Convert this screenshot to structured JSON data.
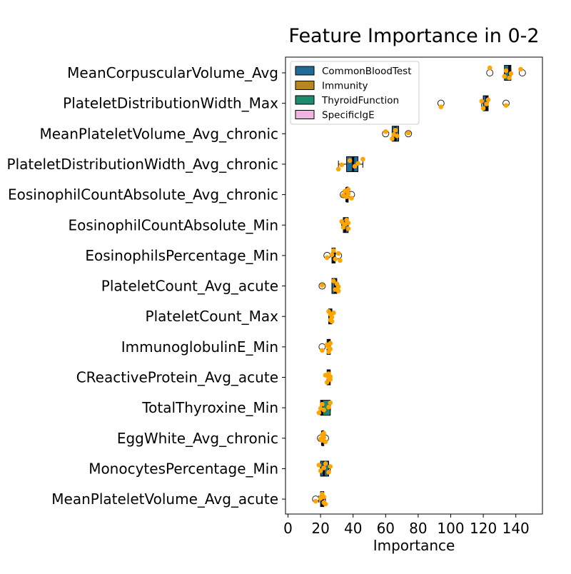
{
  "chart_data": {
    "type": "boxplot-horizontal",
    "title": "Feature Importance in 0-2",
    "xlabel": "Importance",
    "ylabel": "",
    "xlim": [
      0,
      153
    ],
    "xticks": [
      0,
      20,
      40,
      60,
      80,
      100,
      120,
      140
    ],
    "grid": false,
    "legend_position": "top-left",
    "legend": [
      {
        "label": "CommonBloodTest",
        "color": "#1f6b96"
      },
      {
        "label": "Immunity",
        "color": "#b8861e"
      },
      {
        "label": "ThyroidFunction",
        "color": "#1e8a6e"
      },
      {
        "label": "SpecificIgE",
        "color": "#f0b4e0"
      }
    ],
    "point_color": "#ffa500",
    "features": [
      {
        "name": "MeanCorpuscularVolume_Avg",
        "category": "CommonBloodTest",
        "whislo": 133,
        "q1": 133,
        "median": 136,
        "q3": 137,
        "whishi": 137,
        "outliers": [
          124,
          144
        ],
        "points": [
          124,
          133,
          134,
          136,
          137,
          143
        ]
      },
      {
        "name": "PlateletDistributionWidth_Max",
        "category": "CommonBloodTest",
        "whislo": 119,
        "q1": 120,
        "median": 122,
        "q3": 123,
        "whishi": 123,
        "outliers": [
          94,
          134
        ],
        "points": [
          94,
          119,
          120,
          122,
          123,
          134
        ]
      },
      {
        "name": "MeanPlateletVolume_Avg_chronic",
        "category": "CommonBloodTest",
        "whislo": 64,
        "q1": 64,
        "median": 66,
        "q3": 68,
        "whishi": 68,
        "outliers": [
          60,
          74
        ],
        "points": [
          60,
          64,
          65,
          66,
          67,
          74
        ]
      },
      {
        "name": "PlateletDistributionWidth_Avg_chronic",
        "category": "CommonBloodTest",
        "whislo": 31,
        "q1": 36,
        "median": 40,
        "q3": 43,
        "whishi": 46,
        "outliers": [],
        "points": [
          31,
          33,
          38,
          41,
          43,
          46
        ]
      },
      {
        "name": "EosinophilCountAbsolute_Avg_chronic",
        "category": "CommonBloodTest",
        "whislo": 35,
        "q1": 36,
        "median": 36,
        "q3": 37,
        "whishi": 37,
        "outliers": [
          34,
          39
        ],
        "points": [
          34,
          35,
          36,
          37,
          37,
          39
        ]
      },
      {
        "name": "EosinophilCountAbsolute_Min",
        "category": "CommonBloodTest",
        "whislo": 33,
        "q1": 34,
        "median": 35,
        "q3": 37,
        "whishi": 37,
        "outliers": [],
        "points": [
          33,
          34,
          35,
          36,
          37,
          37
        ]
      },
      {
        "name": "EosinophilsPercentage_Min",
        "category": "CommonBloodTest",
        "whislo": 27,
        "q1": 27,
        "median": 28,
        "q3": 29,
        "whishi": 29,
        "outliers": [
          24,
          31
        ],
        "points": [
          24,
          27,
          28,
          29,
          31,
          32
        ]
      },
      {
        "name": "PlateletCount_Avg_acute",
        "category": "CommonBloodTest",
        "whislo": 27,
        "q1": 27,
        "median": 29,
        "q3": 30,
        "whishi": 31,
        "outliers": [
          21
        ],
        "points": [
          21,
          28,
          29,
          30,
          31,
          31
        ]
      },
      {
        "name": "PlateletCount_Max",
        "category": "CommonBloodTest",
        "whislo": 25,
        "q1": 25,
        "median": 26,
        "q3": 27,
        "whishi": 27,
        "outliers": [],
        "points": [
          25,
          26,
          26,
          27,
          27,
          28
        ]
      },
      {
        "name": "ImmunoglobulinE_Min",
        "category": "Immunity",
        "whislo": 24,
        "q1": 24,
        "median": 25,
        "q3": 26,
        "whishi": 26,
        "outliers": [
          21
        ],
        "points": [
          21,
          24,
          25,
          25,
          26,
          26
        ]
      },
      {
        "name": "CReactiveProtein_Avg_acute",
        "category": "Immunity",
        "whislo": 24,
        "q1": 24,
        "median": 25,
        "q3": 26,
        "whishi": 26,
        "outliers": [],
        "points": [
          23,
          24,
          25,
          25,
          26,
          26
        ]
      },
      {
        "name": "TotalThyroxine_Min",
        "category": "ThyroidFunction",
        "whislo": 20,
        "q1": 20,
        "median": 21,
        "q3": 26,
        "whishi": 26,
        "outliers": [],
        "points": [
          19,
          20,
          21,
          22,
          25,
          26
        ]
      },
      {
        "name": "EggWhite_Avg_chronic",
        "category": "SpecificIgE",
        "whislo": 21,
        "q1": 21,
        "median": 21,
        "q3": 22,
        "whishi": 22,
        "outliers": [
          20,
          23
        ],
        "points": [
          20,
          21,
          21,
          22,
          22,
          23
        ]
      },
      {
        "name": "MonocytesPercentage_Min",
        "category": "CommonBloodTest",
        "whislo": 20,
        "q1": 20,
        "median": 22,
        "q3": 25,
        "whishi": 26,
        "outliers": [],
        "points": [
          19,
          20,
          22,
          23,
          25,
          26
        ]
      },
      {
        "name": "MeanPlateletVolume_Avg_acute",
        "category": "CommonBloodTest",
        "whislo": 19,
        "q1": 20,
        "median": 21,
        "q3": 22,
        "whishi": 23,
        "outliers": [
          17
        ],
        "points": [
          17,
          20,
          21,
          22,
          22,
          23
        ]
      }
    ]
  }
}
